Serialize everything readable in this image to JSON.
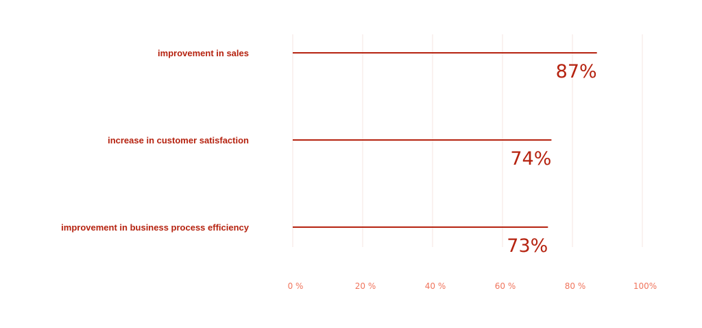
{
  "chart_data": {
    "type": "bar",
    "orientation": "horizontal",
    "categories": [
      "improvement in sales",
      "increase in customer satisfaction",
      "improvement in business process efficiency"
    ],
    "values": [
      87,
      74,
      73
    ],
    "value_labels": [
      "87%",
      "74%",
      "73%"
    ],
    "title": "",
    "xlabel": "",
    "ylabel": "",
    "xlim": [
      0,
      100
    ],
    "x_ticks": [
      0,
      20,
      40,
      60,
      80,
      100
    ],
    "x_tick_labels": [
      "0 %",
      "20 %",
      "40 %",
      "60 %",
      "80 %",
      "100%"
    ],
    "grid": true,
    "legend": "none"
  },
  "colors": {
    "bar": "#b5220f",
    "label": "#b5220f",
    "tick": "#f0745c",
    "grid": "#f6e4e1"
  }
}
